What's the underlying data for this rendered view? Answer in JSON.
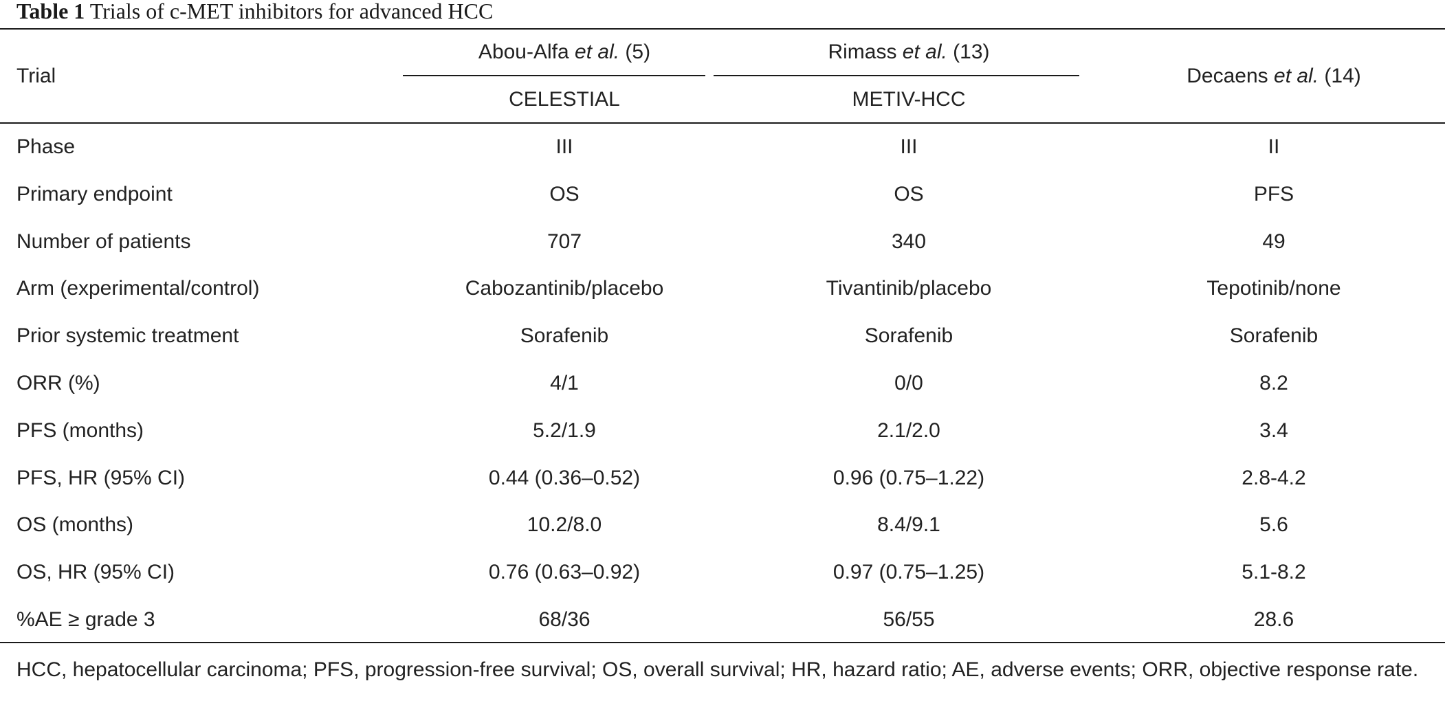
{
  "caption": {
    "label": "Table 1",
    "text": " Trials of c-MET inhibitors for advanced HCC"
  },
  "header": {
    "row_label": "Trial",
    "col1": {
      "author": "Abou-Alfa ",
      "etal": "et al.",
      "ref": " (5)",
      "trial": "CELESTIAL"
    },
    "col2": {
      "author": "Rimass ",
      "etal": "et al.",
      "ref": " (13)",
      "trial": "METIV-HCC"
    },
    "col3": {
      "author": "Decaens ",
      "etal": "et al.",
      "ref": " (14)"
    }
  },
  "rows": [
    {
      "label": "Phase",
      "values": [
        "III",
        "III",
        "II"
      ]
    },
    {
      "label": "Primary endpoint",
      "values": [
        "OS",
        "OS",
        "PFS"
      ]
    },
    {
      "label": "Number of patients",
      "values": [
        "707",
        "340",
        "49"
      ]
    },
    {
      "label": "Arm (experimental/control)",
      "values": [
        "Cabozantinib/placebo",
        "Tivantinib/placebo",
        "Tepotinib/none"
      ]
    },
    {
      "label": "Prior systemic treatment",
      "values": [
        "Sorafenib",
        "Sorafenib",
        "Sorafenib"
      ]
    },
    {
      "label": "ORR (%)",
      "values": [
        "4/1",
        "0/0",
        "8.2"
      ]
    },
    {
      "label": "PFS (months)",
      "values": [
        "5.2/1.9",
        "2.1/2.0",
        "3.4"
      ]
    },
    {
      "label": "PFS, HR (95% CI)",
      "values": [
        "0.44 (0.36–0.52)",
        "0.96 (0.75–1.22)",
        "2.8-4.2"
      ]
    },
    {
      "label": "OS (months)",
      "values": [
        "10.2/8.0",
        "8.4/9.1",
        "5.6"
      ]
    },
    {
      "label": "OS, HR (95% CI)",
      "values": [
        "0.76 (0.63–0.92)",
        "0.97 (0.75–1.25)",
        "5.1-8.2"
      ]
    },
    {
      "label": "%AE ≥ grade 3",
      "values": [
        "68/36",
        "56/55",
        "28.6"
      ]
    }
  ],
  "footnote": "HCC, hepatocellular carcinoma; PFS, progression-free survival; OS, overall survival; HR, hazard ratio; AE, adverse events; ORR, objective response rate."
}
